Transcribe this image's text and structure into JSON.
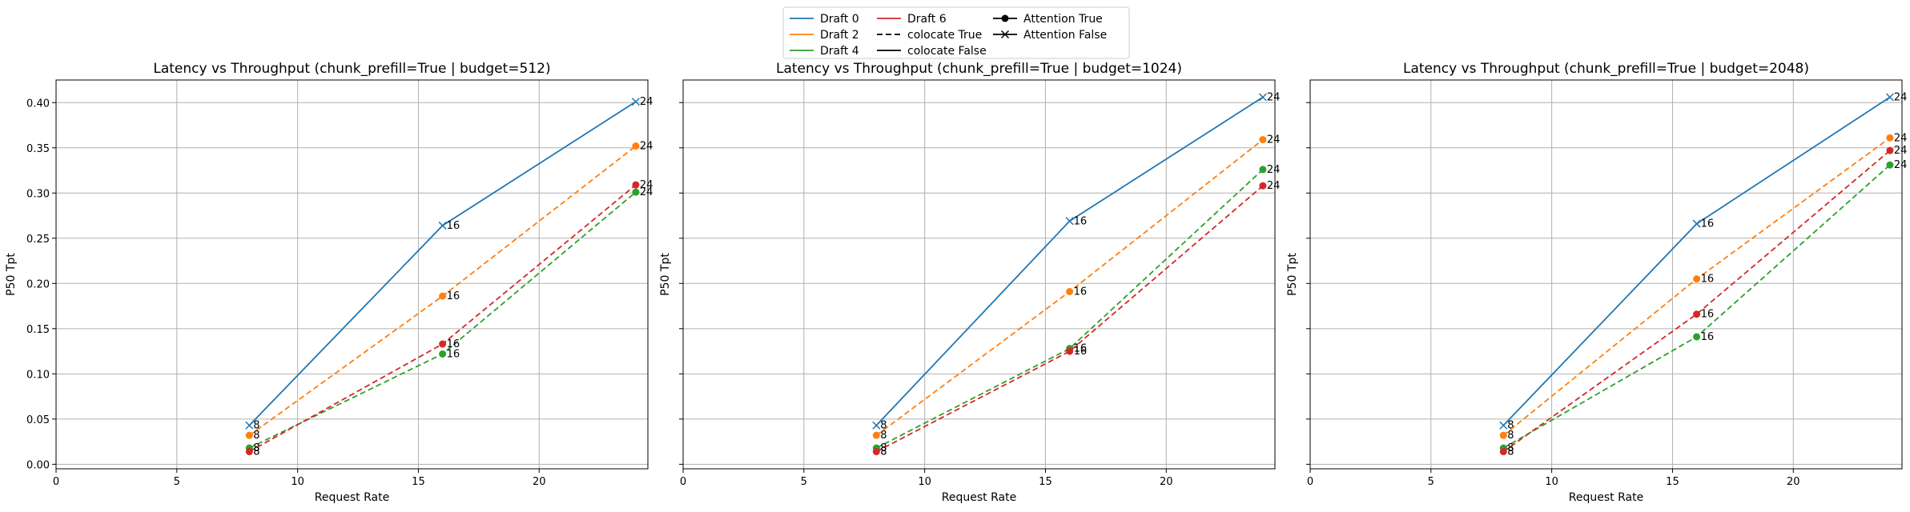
{
  "legend": {
    "entries": [
      {
        "label": "Draft 0",
        "kind": "line",
        "color": "#1f77b4",
        "dash": "solid"
      },
      {
        "label": "Draft 2",
        "kind": "line",
        "color": "#ff7f0e",
        "dash": "solid"
      },
      {
        "label": "Draft 4",
        "kind": "line",
        "color": "#2ca02c",
        "dash": "solid"
      },
      {
        "label": "Draft 6",
        "kind": "line",
        "color": "#d62728",
        "dash": "solid"
      },
      {
        "label": "colocate True",
        "kind": "line",
        "color": "#000000",
        "dash": "dashed"
      },
      {
        "label": "colocate False",
        "kind": "line",
        "color": "#000000",
        "dash": "solid"
      },
      {
        "label": "Attention True",
        "kind": "marker",
        "color": "#000000",
        "marker": "circle"
      },
      {
        "label": "Attention False",
        "kind": "marker",
        "color": "#000000",
        "marker": "x"
      }
    ],
    "placement": "top-center"
  },
  "chart_data": [
    {
      "type": "line",
      "title": "Latency vs Throughput (chunk_prefill=True | budget=512)",
      "xlabel": "Request Rate",
      "ylabel": "P50 Tpt",
      "xlim": [
        0,
        24.5
      ],
      "ylim": [
        -0.005,
        0.425
      ],
      "xticks": [
        0,
        5,
        10,
        15,
        20
      ],
      "yticks": [
        0.0,
        0.05,
        0.1,
        0.15,
        0.2,
        0.25,
        0.3,
        0.35,
        0.4
      ],
      "ytick_labels": [
        "0.00",
        "0.05",
        "0.10",
        "0.15",
        "0.20",
        "0.25",
        "0.30",
        "0.35",
        "0.40"
      ],
      "show_ytick_labels": true,
      "grid": true,
      "series": [
        {
          "name": "Draft 0",
          "color": "#1f77b4",
          "dash": "solid",
          "marker": "x",
          "x": [
            8,
            16,
            24
          ],
          "y": [
            0.043,
            0.264,
            0.401
          ],
          "point_labels": [
            "8",
            "16",
            "24"
          ]
        },
        {
          "name": "Draft 2",
          "color": "#ff7f0e",
          "dash": "dashed",
          "marker": "circle",
          "x": [
            8,
            16,
            24
          ],
          "y": [
            0.032,
            0.186,
            0.352
          ],
          "point_labels": [
            "8",
            "16",
            "24"
          ]
        },
        {
          "name": "Draft 4",
          "color": "#2ca02c",
          "dash": "dashed",
          "marker": "circle",
          "x": [
            8,
            16,
            24
          ],
          "y": [
            0.018,
            0.122,
            0.301
          ],
          "point_labels": [
            "8",
            "16",
            "24"
          ]
        },
        {
          "name": "Draft 6",
          "color": "#d62728",
          "dash": "dashed",
          "marker": "circle",
          "x": [
            8,
            16,
            24
          ],
          "y": [
            0.014,
            0.133,
            0.309
          ],
          "point_labels": [
            "8",
            "16",
            "24"
          ]
        }
      ]
    },
    {
      "type": "line",
      "title": "Latency vs Throughput (chunk_prefill=True | budget=1024)",
      "xlabel": "Request Rate",
      "ylabel": "P50 Tpt",
      "xlim": [
        0,
        24.5
      ],
      "ylim": [
        -0.005,
        0.425
      ],
      "xticks": [
        0,
        5,
        10,
        15,
        20
      ],
      "yticks": [
        0.0,
        0.05,
        0.1,
        0.15,
        0.2,
        0.25,
        0.3,
        0.35,
        0.4
      ],
      "ytick_labels": [
        "0.00",
        "0.05",
        "0.10",
        "0.15",
        "0.20",
        "0.25",
        "0.30",
        "0.35",
        "0.40"
      ],
      "show_ytick_labels": false,
      "grid": true,
      "series": [
        {
          "name": "Draft 0",
          "color": "#1f77b4",
          "dash": "solid",
          "marker": "x",
          "x": [
            8,
            16,
            24
          ],
          "y": [
            0.043,
            0.269,
            0.406
          ],
          "point_labels": [
            "8",
            "16",
            "24"
          ]
        },
        {
          "name": "Draft 2",
          "color": "#ff7f0e",
          "dash": "dashed",
          "marker": "circle",
          "x": [
            8,
            16,
            24
          ],
          "y": [
            0.032,
            0.191,
            0.359
          ],
          "point_labels": [
            "8",
            "16",
            "24"
          ]
        },
        {
          "name": "Draft 4",
          "color": "#2ca02c",
          "dash": "dashed",
          "marker": "circle",
          "x": [
            8,
            16,
            24
          ],
          "y": [
            0.018,
            0.128,
            0.326
          ],
          "point_labels": [
            "8",
            "16",
            "24"
          ]
        },
        {
          "name": "Draft 6",
          "color": "#d62728",
          "dash": "dashed",
          "marker": "circle",
          "x": [
            8,
            16,
            24
          ],
          "y": [
            0.014,
            0.125,
            0.308
          ],
          "point_labels": [
            "8",
            "16",
            "24"
          ]
        }
      ]
    },
    {
      "type": "line",
      "title": "Latency vs Throughput (chunk_prefill=True | budget=2048)",
      "xlabel": "Request Rate",
      "ylabel": "P50 Tpt",
      "xlim": [
        0,
        24.5
      ],
      "ylim": [
        -0.005,
        0.425
      ],
      "xticks": [
        0,
        5,
        10,
        15,
        20
      ],
      "yticks": [
        0.0,
        0.05,
        0.1,
        0.15,
        0.2,
        0.25,
        0.3,
        0.35,
        0.4
      ],
      "ytick_labels": [
        "0.00",
        "0.05",
        "0.10",
        "0.15",
        "0.20",
        "0.25",
        "0.30",
        "0.35",
        "0.40"
      ],
      "show_ytick_labels": false,
      "grid": true,
      "series": [
        {
          "name": "Draft 0",
          "color": "#1f77b4",
          "dash": "solid",
          "marker": "x",
          "x": [
            8,
            16,
            24
          ],
          "y": [
            0.043,
            0.266,
            0.406
          ],
          "point_labels": [
            "8",
            "16",
            "24"
          ]
        },
        {
          "name": "Draft 2",
          "color": "#ff7f0e",
          "dash": "dashed",
          "marker": "circle",
          "x": [
            8,
            16,
            24
          ],
          "y": [
            0.032,
            0.205,
            0.361
          ],
          "point_labels": [
            "8",
            "16",
            "24"
          ]
        },
        {
          "name": "Draft 4",
          "color": "#2ca02c",
          "dash": "dashed",
          "marker": "circle",
          "x": [
            8,
            16,
            24
          ],
          "y": [
            0.018,
            0.141,
            0.331
          ],
          "point_labels": [
            "8",
            "16",
            "24"
          ]
        },
        {
          "name": "Draft 6",
          "color": "#d62728",
          "dash": "dashed",
          "marker": "circle",
          "x": [
            8,
            16,
            24
          ],
          "y": [
            0.014,
            0.166,
            0.347
          ],
          "point_labels": [
            "8",
            "16",
            "24"
          ]
        }
      ]
    }
  ]
}
